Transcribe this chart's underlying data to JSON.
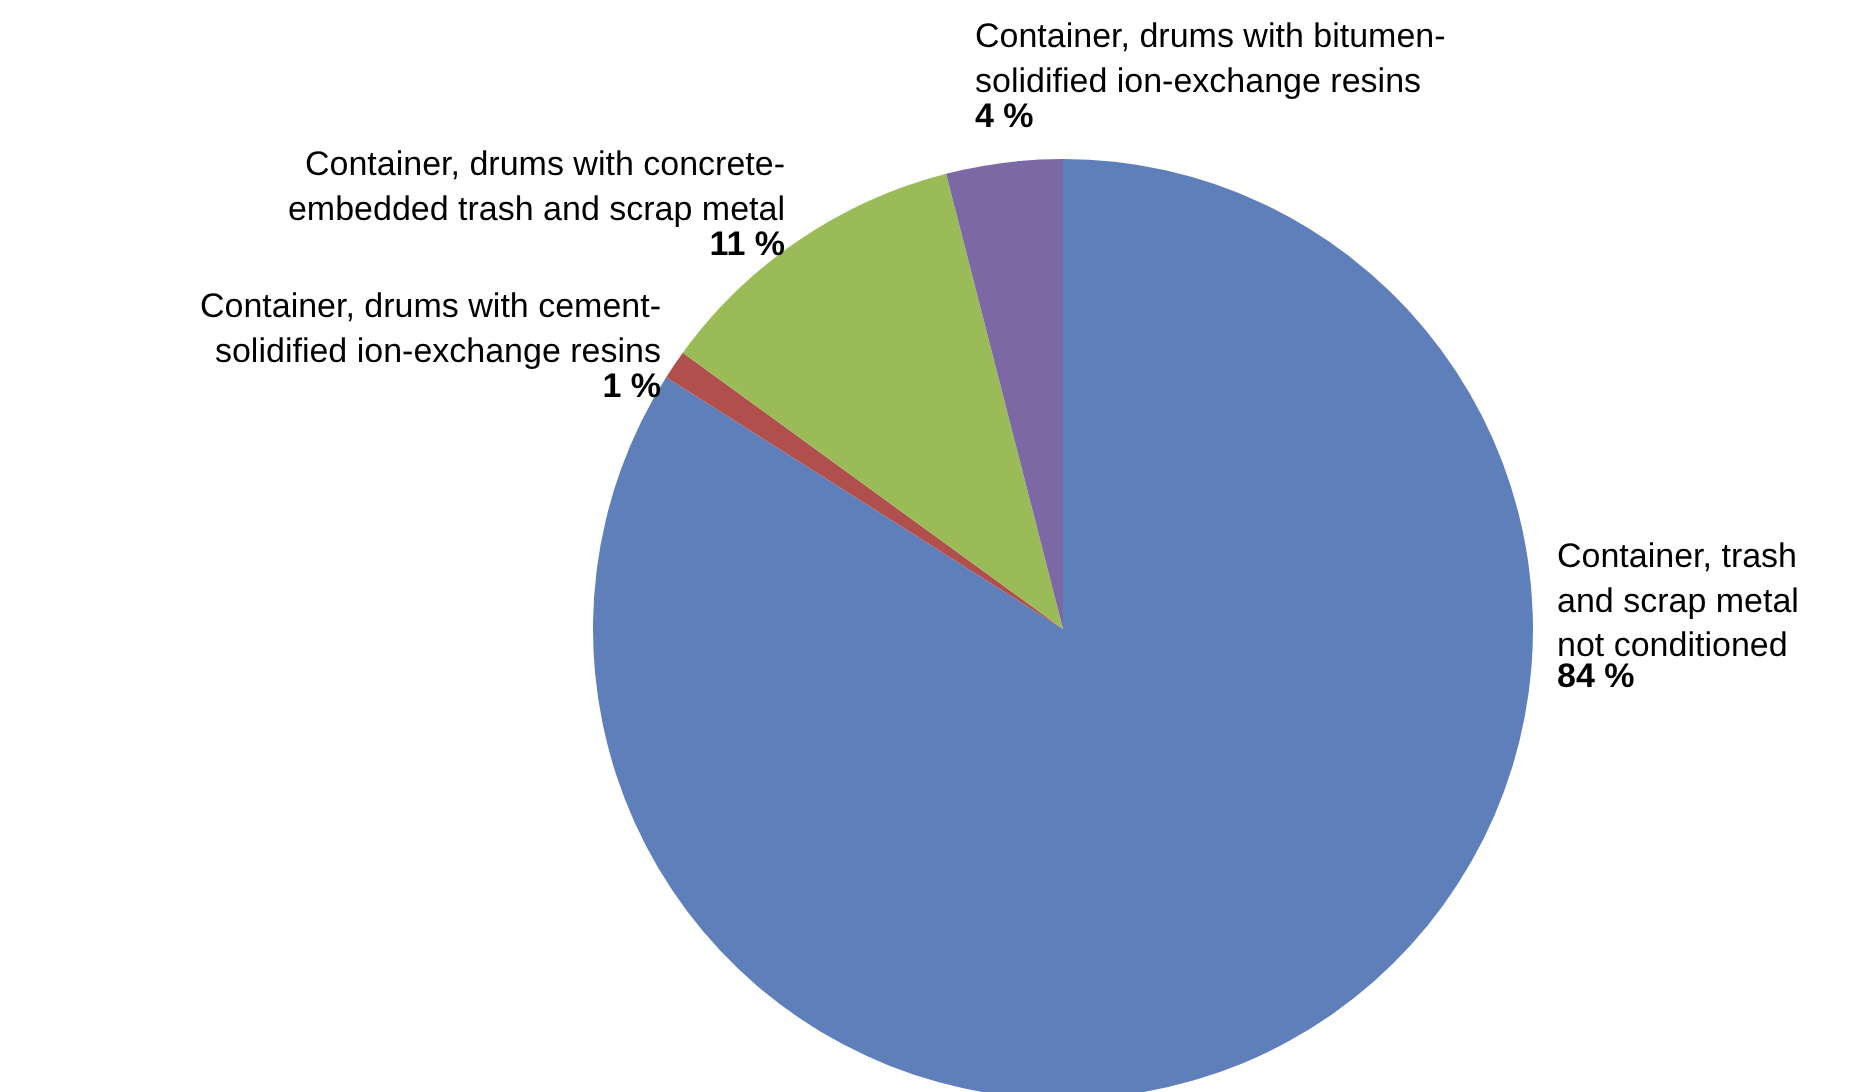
{
  "chart_data": {
    "type": "pie",
    "categories": [
      "Container, trash\nand scrap metal\nnot conditioned",
      "Container, drums with cement-\nsolidified ion-exchange resins",
      "Container, drums with concrete-\nembedded trash and scrap metal",
      "Container, drums with bitumen-\nsolidified ion-exchange resins"
    ],
    "values": [
      84,
      1,
      11,
      4
    ],
    "colors": [
      "#5f7fba",
      "#b04f4c",
      "#9bbb59",
      "#7b68a4"
    ],
    "value_labels": [
      "84 %",
      "1 %",
      "11 %",
      "4 %"
    ],
    "legend": false
  }
}
